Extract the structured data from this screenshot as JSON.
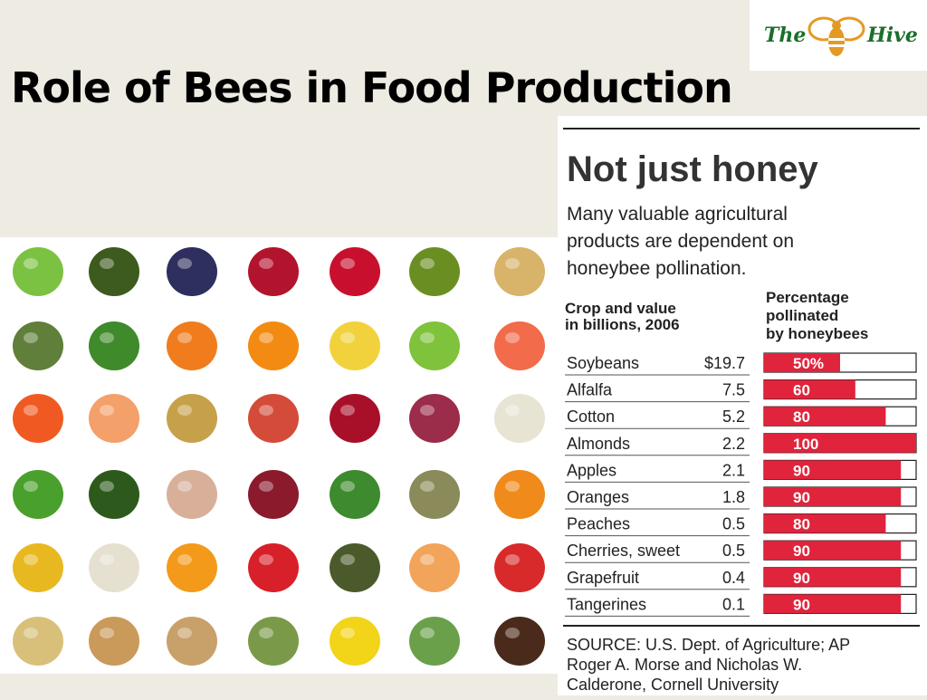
{
  "slide": {
    "title": "Role of Bees in Food Production"
  },
  "logo": {
    "left_word": "The",
    "right_word": "Hive",
    "icon": "bee-icon",
    "text_color": "#1c6e2a",
    "icon_color": "#e49a22"
  },
  "produce_images": [
    "apple-icon",
    "avocado-icon",
    "blueberries-icon",
    "cranberries-icon",
    "cherries-icon",
    "kiwi-icon",
    "soybeans-icon",
    "asparagus-icon",
    "broccoli-icon",
    "carrots-icon",
    "orange-icon",
    "lemon-icon",
    "lime-icon",
    "grapefruit-icon",
    "tangerine-icon",
    "peach-icon",
    "pear-icon",
    "nectarine-icon",
    "red-apple-icon",
    "grapes-icon",
    "cauliflower-icon",
    "green-beans-icon",
    "cucumber-icon",
    "onion-icon",
    "kidney-beans-icon",
    "snow-peas-icon",
    "lentils-icon",
    "pumpkin-icon",
    "squash-icon",
    "sunflower-seeds-icon",
    "apricot-icon",
    "strawberries-icon",
    "olives-icon",
    "cantaloupe-icon",
    "watermelon-icon",
    "melon-icon",
    "almonds-icon",
    "chickpeas-icon",
    "radish-icon",
    "yellow-peppers-icon",
    "celery-icon",
    "coffee-beans-icon"
  ],
  "chart_data": {
    "type": "bar",
    "title": "Not just honey",
    "subtitle_lines": [
      "Many valuable agricultural",
      "products are  dependent on",
      "honeybee pollination."
    ],
    "left_header_lines": [
      "Crop and value",
      "in billions, 2006"
    ],
    "right_header_lines": [
      "Percentage",
      "pollinated",
      "by honeybees"
    ],
    "categories": [
      "Soybeans",
      "Alfalfa",
      "Cotton",
      "Almonds",
      "Apples",
      "Oranges",
      "Peaches",
      "Cherries, sweet",
      "Grapefruit",
      "Tangerines"
    ],
    "value_labels": [
      "$19.7",
      "7.5",
      "5.2",
      "2.2",
      "2.1",
      "1.8",
      "0.5",
      "0.5",
      "0.4",
      "0.1"
    ],
    "values": [
      50,
      60,
      80,
      100,
      90,
      90,
      80,
      90,
      90,
      90
    ],
    "bar_labels": [
      "50%",
      "60",
      "80",
      "100",
      "90",
      "90",
      "80",
      "90",
      "90",
      "90"
    ],
    "ylim": [
      0,
      100
    ],
    "bar_color": "#e0243c",
    "source_lines": [
      "SOURCE: U.S. Dept. of Agriculture; AP",
      "Roger A. Morse and Nicholas W.",
      "Calderone, Cornell University"
    ]
  }
}
